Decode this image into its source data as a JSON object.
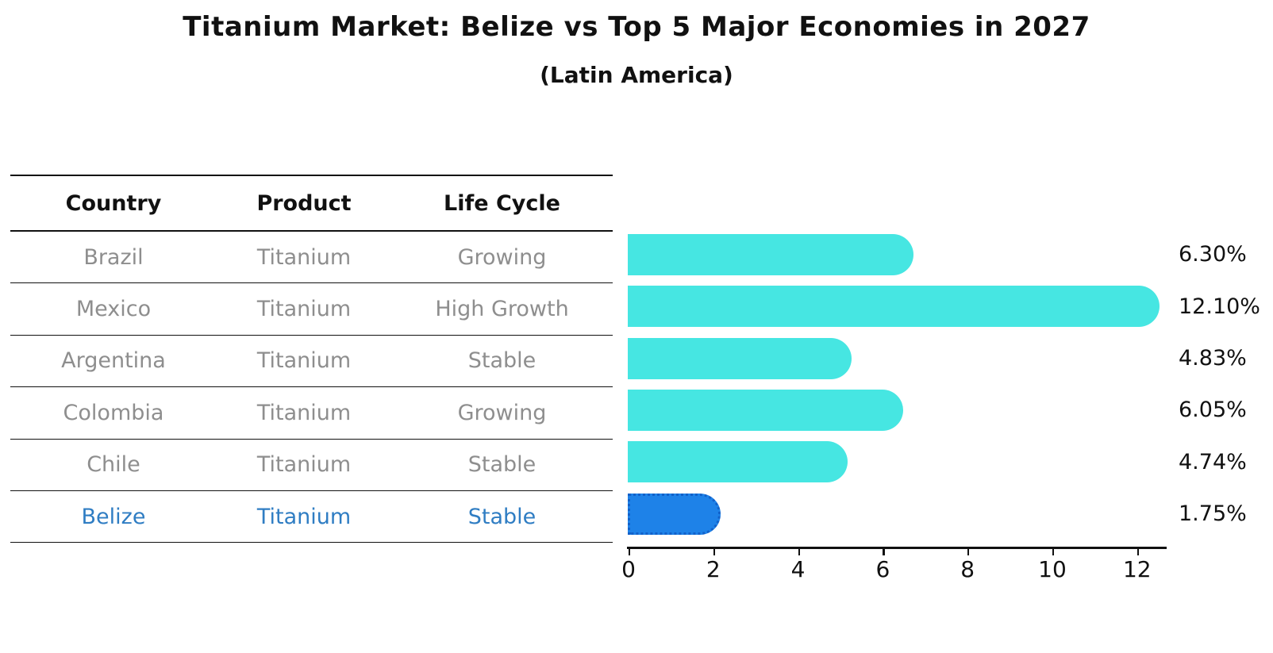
{
  "title": "Titanium Market: Belize vs Top 5 Major Economies in 2027",
  "subtitle": "(Latin America)",
  "table": {
    "headers": [
      "Country",
      "Product",
      "Life Cycle"
    ],
    "rows": [
      {
        "country": "Brazil",
        "product": "Titanium",
        "life_cycle": "Growing",
        "highlight": false
      },
      {
        "country": "Mexico",
        "product": "Titanium",
        "life_cycle": "High Growth",
        "highlight": false
      },
      {
        "country": "Argentina",
        "product": "Titanium",
        "life_cycle": "Stable",
        "highlight": false
      },
      {
        "country": "Colombia",
        "product": "Titanium",
        "life_cycle": "Growing",
        "highlight": false
      },
      {
        "country": "Chile",
        "product": "Titanium",
        "life_cycle": "Stable",
        "highlight": false
      },
      {
        "country": "Belize",
        "product": "Titanium",
        "life_cycle": "Stable",
        "highlight": true
      }
    ]
  },
  "chart_data": {
    "type": "bar",
    "orientation": "horizontal",
    "title": "Titanium Market: Belize vs Top 5 Major Economies in 2027",
    "subtitle": "(Latin America)",
    "categories": [
      "Brazil",
      "Mexico",
      "Argentina",
      "Colombia",
      "Chile",
      "Belize"
    ],
    "values": [
      6.3,
      12.1,
      4.83,
      6.05,
      4.74,
      1.75
    ],
    "value_labels": [
      "6.30%",
      "12.10%",
      "4.83%",
      "6.05%",
      "4.74%",
      "1.75%"
    ],
    "highlight_index": 5,
    "xticks": [
      0,
      2,
      4,
      6,
      8,
      10,
      12
    ],
    "xlim": [
      0,
      12.7
    ],
    "grid": false,
    "legend": false
  },
  "colors": {
    "bar": "#46e6e2",
    "highlight_bar": "#1e82e8",
    "highlight_bar_border": "#1261c9",
    "row_text": "#8e8e8e",
    "highlight_text": "#2f7dc3",
    "axis": "#111111",
    "background": "#ffffff"
  }
}
